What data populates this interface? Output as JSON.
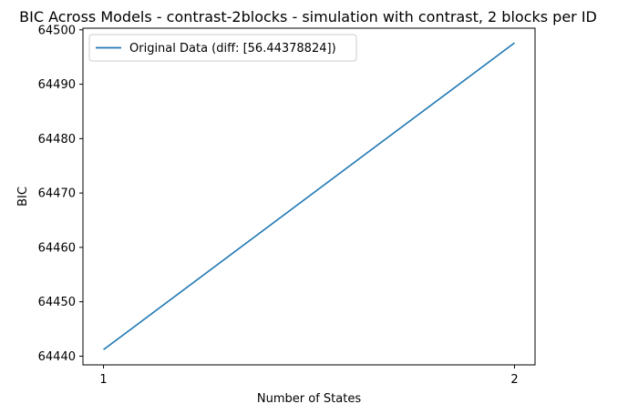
{
  "chart_data": {
    "type": "line",
    "title": "BIC Across Models - contrast-2blocks - simulation with contrast, 2 blocks per ID",
    "xlabel": "Number of States",
    "ylabel": "BIC",
    "x": [
      1,
      2
    ],
    "xticks": [
      1,
      2
    ],
    "xtick_labels": [
      "1",
      "2"
    ],
    "xlim": [
      0.95,
      2.05
    ],
    "ylim": [
      64438.4,
      64500.3
    ],
    "yticks": [
      64440,
      64450,
      64460,
      64470,
      64480,
      64490,
      64500
    ],
    "ytick_labels": [
      "64440",
      "64450",
      "64460",
      "64470",
      "64480",
      "64490",
      "64500"
    ],
    "series": [
      {
        "name": "Original Data (diff: [56.44378824])",
        "values": [
          64441.2,
          64497.6
        ],
        "color": "#1f77b4"
      }
    ],
    "grid": false,
    "legend_position": "upper-left"
  }
}
